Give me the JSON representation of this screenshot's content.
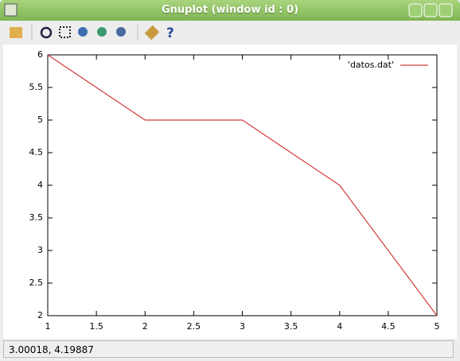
{
  "window": {
    "title": "Gnuplot (window id : 0)"
  },
  "status_bar": {
    "text": "3.00018,  4.19887"
  },
  "chart_data": {
    "type": "line",
    "x": [
      1,
      2,
      3,
      4,
      5
    ],
    "series": [
      {
        "name": "'datos.dat'",
        "color": "#d03c3c",
        "values": [
          6,
          5,
          5,
          4,
          2
        ]
      }
    ],
    "xlim": [
      1,
      5
    ],
    "xticks": [
      1,
      1.5,
      2,
      2.5,
      3,
      3.5,
      4,
      4.5,
      5
    ],
    "ylim": [
      2,
      6
    ],
    "yticks": [
      2,
      2.5,
      3,
      3.5,
      4,
      4.5,
      5,
      5.5,
      6
    ],
    "grid": false,
    "legend": "top-right"
  }
}
